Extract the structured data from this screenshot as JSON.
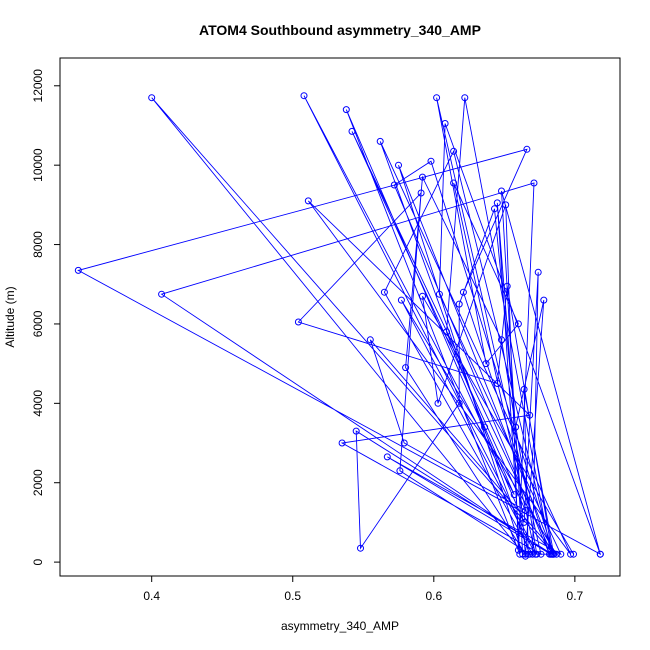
{
  "chart_data": {
    "type": "line",
    "title": "ATOM4 Southbound asymmetry_340_AMP",
    "xlabel": "asymmetry_340_AMP",
    "ylabel": "Altitude (m)",
    "xlim": [
      0.335,
      0.732
    ],
    "ylim": [
      -350,
      12700
    ],
    "x_ticks": [
      0.4,
      0.5,
      0.6,
      0.7
    ],
    "x_tick_labels": [
      "0.4",
      "0.5",
      "0.6",
      "0.7"
    ],
    "y_ticks": [
      0,
      2000,
      4000,
      6000,
      8000,
      10000,
      12000
    ],
    "y_tick_labels": [
      "0",
      "2000",
      "4000",
      "6000",
      "8000",
      "10000",
      "12000"
    ],
    "grid": false,
    "legend": "none",
    "series": [
      {
        "color": "#0000ff",
        "marker": "open-circle",
        "points": [
          [
            0.718,
            200
          ],
          [
            0.648,
            9350
          ],
          [
            0.663,
            200
          ],
          [
            0.575,
            10000
          ],
          [
            0.685,
            200
          ],
          [
            0.598,
            10100
          ],
          [
            0.572,
            9500
          ],
          [
            0.682,
            200
          ],
          [
            0.621,
            6800
          ],
          [
            0.666,
            10400
          ],
          [
            0.348,
            7350
          ],
          [
            0.718,
            200
          ],
          [
            0.608,
            11050
          ],
          [
            0.604,
            6750
          ],
          [
            0.69,
            200
          ],
          [
            0.567,
            2650
          ],
          [
            0.683,
            200
          ],
          [
            0.667,
            200
          ],
          [
            0.664,
            4350
          ],
          [
            0.685,
            200
          ],
          [
            0.4,
            11700
          ],
          [
            0.665,
            150
          ],
          [
            0.645,
            9050
          ],
          [
            0.661,
            200
          ],
          [
            0.538,
            11400
          ],
          [
            0.664,
            1000
          ],
          [
            0.674,
            7300
          ],
          [
            0.67,
            200
          ],
          [
            0.565,
            6800
          ],
          [
            0.614,
            10350
          ],
          [
            0.684,
            200
          ],
          [
            0.542,
            10850
          ],
          [
            0.665,
            1300
          ],
          [
            0.579,
            3000
          ],
          [
            0.555,
            5600
          ],
          [
            0.687,
            200
          ],
          [
            0.577,
            6600
          ],
          [
            0.672,
            200
          ],
          [
            0.614,
            9550
          ],
          [
            0.66,
            6000
          ],
          [
            0.637,
            5000
          ],
          [
            0.602,
            11700
          ],
          [
            0.676,
            200
          ],
          [
            0.535,
            3000
          ],
          [
            0.668,
            3700
          ],
          [
            0.511,
            9100
          ],
          [
            0.697,
            200
          ],
          [
            0.562,
            10600
          ],
          [
            0.668,
            200
          ],
          [
            0.576,
            2300
          ],
          [
            0.591,
            9300
          ],
          [
            0.504,
            6050
          ],
          [
            0.645,
            4500
          ],
          [
            0.652,
            6950
          ],
          [
            0.684,
            200
          ],
          [
            0.545,
            3300
          ],
          [
            0.548,
            350
          ],
          [
            0.618,
            4000
          ],
          [
            0.618,
            6500
          ],
          [
            0.643,
            8900
          ],
          [
            0.658,
            3400
          ],
          [
            0.678,
            6600
          ],
          [
            0.665,
            200
          ],
          [
            0.58,
            4900
          ],
          [
            0.592,
            9700
          ],
          [
            0.648,
            5600
          ],
          [
            0.673,
            200
          ],
          [
            0.508,
            11750
          ],
          [
            0.657,
            1700
          ],
          [
            0.636,
            3400
          ],
          [
            0.609,
            5800
          ],
          [
            0.622,
            11700
          ],
          [
            0.683,
            200
          ],
          [
            0.407,
            6750
          ],
          [
            0.671,
            9550
          ],
          [
            0.66,
            300
          ],
          [
            0.651,
            9000
          ],
          [
            0.603,
            4000
          ],
          [
            0.592,
            6700
          ],
          [
            0.699,
            200
          ]
        ]
      }
    ]
  }
}
